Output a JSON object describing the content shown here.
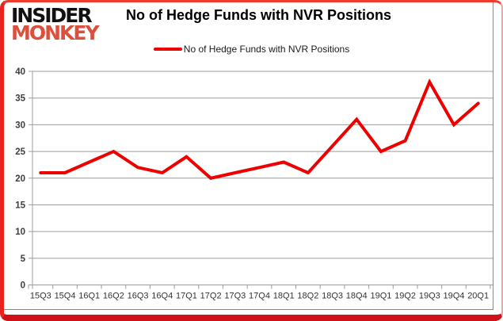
{
  "brand": {
    "line1": "INSIDER",
    "line2": "MONKEY"
  },
  "header": {
    "title": "No of Hedge Funds with NVR Positions"
  },
  "legend": {
    "label": "No of Hedge Funds with NVR Positions"
  },
  "colors": {
    "line": "#ee0000",
    "brand_accent": "#d9513c",
    "frame_red": "#e8241d",
    "grid": "#9c9c9c",
    "axis_text": "#3d3d3d",
    "xaxis_text": "#333333"
  },
  "chart_data": {
    "type": "line",
    "title": "No of Hedge Funds with NVR Positions",
    "xlabel": "",
    "ylabel": "",
    "categories": [
      "15Q3",
      "15Q4",
      "16Q1",
      "16Q2",
      "16Q3",
      "16Q4",
      "17Q1",
      "17Q2",
      "17Q3",
      "17Q4",
      "18Q1",
      "18Q2",
      "18Q3",
      "18Q4",
      "19Q1",
      "19Q2",
      "19Q3",
      "19Q4",
      "20Q1"
    ],
    "series": [
      {
        "name": "No of Hedge Funds with NVR Positions",
        "values": [
          21,
          21,
          23,
          25,
          22,
          21,
          24,
          20,
          21,
          22,
          23,
          21,
          26,
          31,
          25,
          27,
          38,
          30,
          34
        ]
      }
    ],
    "ylim": [
      0,
      40
    ],
    "ytick_step": 5,
    "grid": true,
    "legend_position": "top-center"
  }
}
